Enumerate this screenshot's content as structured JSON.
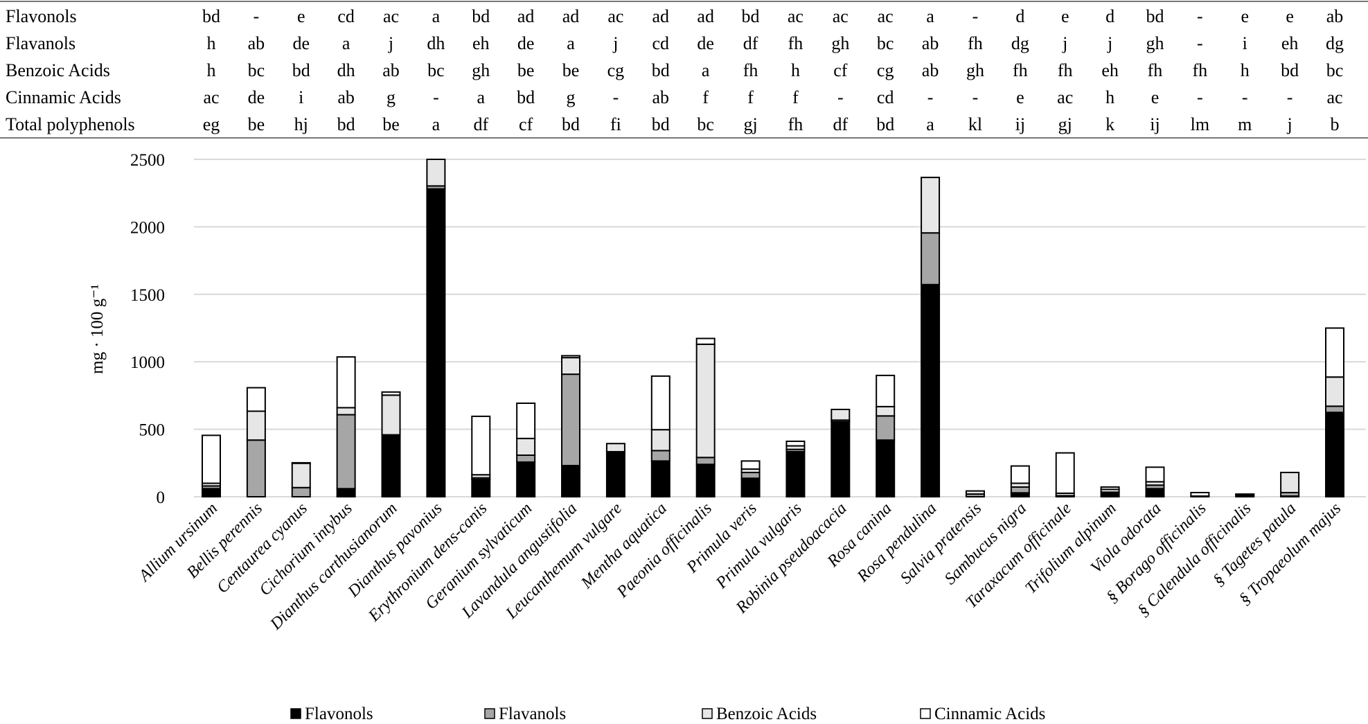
{
  "chart_data": {
    "type": "bar",
    "stacked": true,
    "ylabel": "mg · 100 g⁻¹",
    "ylim": [
      0,
      2500
    ],
    "yticks": [
      0,
      500,
      1000,
      1500,
      2000,
      2500
    ],
    "grid": true,
    "legend_placement": "bottom",
    "categories": [
      "Allium ursinum",
      "Bellis perennis",
      "Centaurea cyanus",
      "Cichorium intybus",
      "Dianthus carthusianorum",
      "Dianthus pavonius",
      "Erythronium dens-canis",
      "Geranium sylvaticum",
      "Lavandula angustifolia",
      "Leucanthemum vulgare",
      "Mentha aquatica",
      "Paeonia officinalis",
      "Primula veris",
      "Primula vulgaris",
      "Robinia pseudoacacia",
      "Rosa canina",
      "Rosa pendulina",
      "Salvia pratensis",
      "Sambucus nigra",
      "Taraxacum officinale",
      "Trifolium alpinum",
      "Viola odorata",
      "§  Borago officinalis",
      "§  Calendula officinalis",
      "§  Tagetes patula",
      "§  Tropaeolum majus"
    ],
    "series": [
      {
        "name": "Flavonols",
        "color": "#000000",
        "values": [
          60,
          0,
          0,
          60,
          459,
          2281,
          128,
          257,
          231,
          334,
          265,
          240,
          137,
          334,
          556,
          420,
          1572,
          0,
          29,
          5,
          34,
          60,
          0,
          15,
          5,
          625
        ]
      },
      {
        "name": "Flavanols",
        "color": "#a6a6a6",
        "values": [
          20,
          420,
          68,
          548,
          0,
          22,
          12,
          51,
          677,
          0,
          77,
          51,
          43,
          17,
          12,
          179,
          383,
          20,
          43,
          3,
          0,
          26,
          0,
          2,
          26,
          46
        ]
      },
      {
        "name": "Benzoic Acids",
        "color": "#e6e6e6",
        "values": [
          20,
          214,
          180,
          52,
          294,
          197,
          23,
          124,
          123,
          60,
          155,
          839,
          25,
          26,
          79,
          69,
          411,
          23,
          28,
          18,
          21,
          25,
          5,
          3,
          149,
          216
        ]
      },
      {
        "name": "Cinnamic Acids",
        "color": "#ffffff",
        "values": [
          355,
          174,
          4,
          376,
          23,
          0,
          433,
          261,
          14,
          0,
          397,
          43,
          60,
          34,
          0,
          231,
          0,
          0,
          128,
          299,
          17,
          108,
          26,
          0,
          0,
          363
        ]
      }
    ],
    "letters_table": {
      "rows": [
        {
          "label": "Flavonols",
          "values": [
            "bd",
            "-",
            "e",
            "cd",
            "ac",
            "a",
            "bd",
            "ad",
            "ad",
            "ac",
            "ad",
            "ad",
            "bd",
            "ac",
            "ac",
            "ac",
            "a",
            "-",
            "d",
            "e",
            "d",
            "bd",
            "-",
            "e",
            "e",
            "ab"
          ]
        },
        {
          "label": "Flavanols",
          "values": [
            "h",
            "ab",
            "de",
            "a",
            "j",
            "dh",
            "eh",
            "de",
            "a",
            "j",
            "cd",
            "de",
            "df",
            "fh",
            "gh",
            "bc",
            "ab",
            "fh",
            "dg",
            "j",
            "j",
            "gh",
            "-",
            "i",
            "eh",
            "dg"
          ]
        },
        {
          "label": "Benzoic Acids",
          "values": [
            "h",
            "bc",
            "bd",
            "dh",
            "ab",
            "bc",
            "gh",
            "be",
            "be",
            "cg",
            "bd",
            "a",
            "fh",
            "h",
            "cf",
            "cg",
            "ab",
            "gh",
            "fh",
            "fh",
            "eh",
            "fh",
            "fh",
            "h",
            "bd",
            "bc"
          ]
        },
        {
          "label": "Cinnamic Acids",
          "values": [
            "ac",
            "de",
            "i",
            "ab",
            "g",
            "-",
            "a",
            "bd",
            "g",
            "-",
            "ab",
            "f",
            "f",
            "f",
            "-",
            "cd",
            "-",
            "-",
            "e",
            "ac",
            "h",
            "e",
            "-",
            "-",
            "-",
            "ac"
          ]
        },
        {
          "label": "Total polyphenols",
          "values": [
            "eg",
            "be",
            "hj",
            "bd",
            "be",
            "a",
            "df",
            "cf",
            "bd",
            "fi",
            "bd",
            "bc",
            "gj",
            "fh",
            "df",
            "bd",
            "a",
            "kl",
            "ij",
            "gj",
            "k",
            "ij",
            "lm",
            "m",
            "j",
            "b"
          ]
        }
      ]
    }
  }
}
